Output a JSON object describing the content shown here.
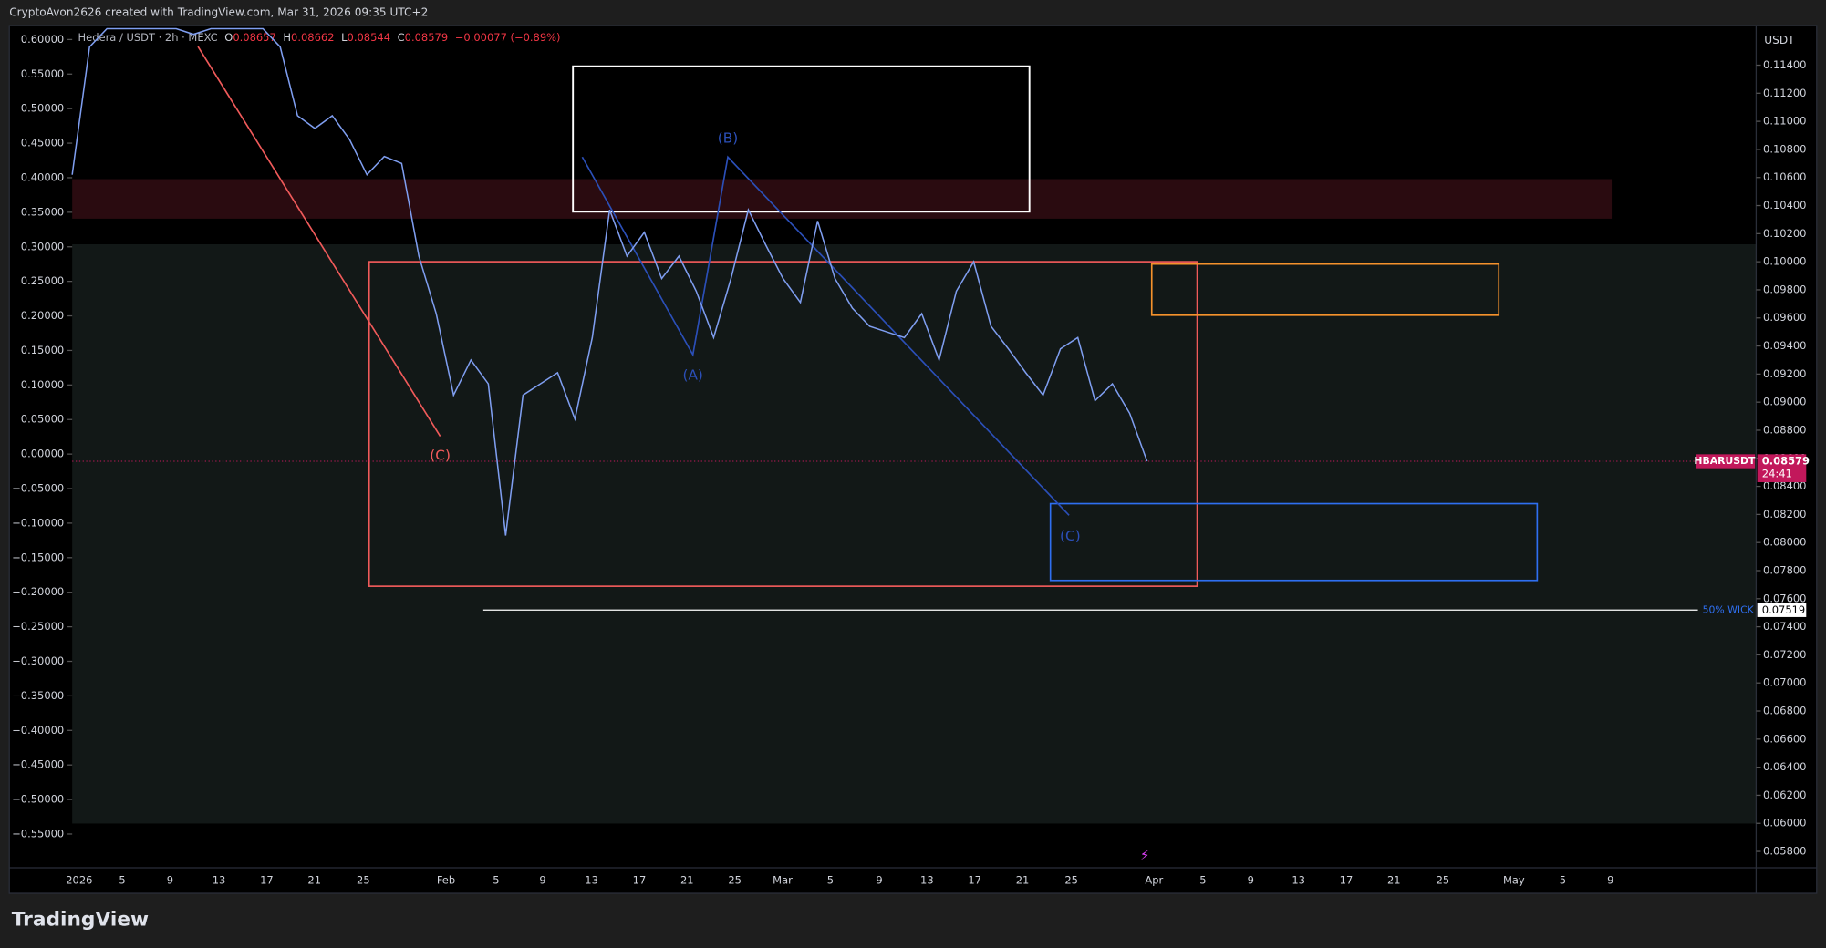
{
  "header": "CryptoAvon2626 created with TradingView.com, Mar 31, 2026 09:35 UTC+2",
  "chart_data": {
    "type": "line",
    "symbol": "Hedera / USDT · 2h · MEXC",
    "ohlc": [
      {
        "label": "O",
        "value": 0.08657
      },
      {
        "label": "H",
        "value": 0.08662
      },
      {
        "label": "L",
        "value": 0.08544
      },
      {
        "label": "C",
        "value": 0.08579
      }
    ],
    "change": "−0.00077 (−0.89%)",
    "currency": "USDT",
    "price": {
      "name": "HBARUSDT",
      "color": "#7f9ef0",
      "values": [
        0.1062,
        0.1153,
        0.1166,
        0.1166,
        0.1166,
        0.1166,
        0.1166,
        0.1162,
        0.1166,
        0.1166,
        0.1166,
        0.1166,
        0.1153,
        0.1104,
        0.1095,
        0.1104,
        0.1087,
        0.1062,
        0.1075,
        0.107,
        0.1004,
        0.0963,
        0.0905,
        0.093,
        0.0913,
        0.0805,
        0.0905,
        0.0913,
        0.0921,
        0.0888,
        0.0946,
        0.1037,
        0.1004,
        0.1021,
        0.0988,
        0.1004,
        0.0979,
        0.0946,
        0.0988,
        0.1037,
        0.1012,
        0.0988,
        0.0971,
        0.1029,
        0.0988,
        0.0967,
        0.0954,
        0.095,
        0.0946,
        0.0963,
        0.093,
        0.0979,
        0.1,
        0.0954,
        0.0938,
        0.0921,
        0.0905,
        0.0938,
        0.0946,
        0.0901,
        0.0913,
        0.0892,
        0.08579
      ]
    },
    "last_price": {
      "value": 0.08579,
      "label": "0.08579"
    },
    "countdown": "24:41",
    "wick_level": {
      "value": 0.07519,
      "label": "0.07519"
    },
    "wick_label": "50% WICK",
    "ylim": [
      0.05692,
      0.11682
    ],
    "yticks": [
      {
        "value": 0.114,
        "label": "0.11400"
      },
      {
        "value": 0.112,
        "label": "0.11200"
      },
      {
        "value": 0.11,
        "label": "0.11000"
      },
      {
        "value": 0.108,
        "label": "0.10800"
      },
      {
        "value": 0.106,
        "label": "0.10600"
      },
      {
        "value": 0.104,
        "label": "0.10400"
      },
      {
        "value": 0.102,
        "label": "0.10200"
      },
      {
        "value": 0.1,
        "label": "0.10000"
      },
      {
        "value": 0.098,
        "label": "0.09800"
      },
      {
        "value": 0.096,
        "label": "0.09600"
      },
      {
        "value": 0.094,
        "label": "0.09400"
      },
      {
        "value": 0.092,
        "label": "0.09200"
      },
      {
        "value": 0.09,
        "label": "0.09000"
      },
      {
        "value": 0.088,
        "label": "0.08800"
      },
      {
        "value": 0.086,
        "label": "0.08600"
      },
      {
        "value": 0.084,
        "label": "0.08400"
      },
      {
        "value": 0.082,
        "label": "0.08200"
      },
      {
        "value": 0.08,
        "label": "0.08000"
      },
      {
        "value": 0.078,
        "label": "0.07800"
      },
      {
        "value": 0.076,
        "label": "0.07600"
      },
      {
        "value": 0.074,
        "label": "0.07400"
      },
      {
        "value": 0.072,
        "label": "0.07200"
      },
      {
        "value": 0.07,
        "label": "0.07000"
      },
      {
        "value": 0.068,
        "label": "0.06800"
      },
      {
        "value": 0.066,
        "label": "0.06600"
      },
      {
        "value": 0.064,
        "label": "0.06400"
      },
      {
        "value": 0.062,
        "label": "0.06200"
      },
      {
        "value": 0.06,
        "label": "0.06000"
      },
      {
        "value": 0.058,
        "label": "0.05800"
      }
    ],
    "y2lim": [
      -0.5971,
      0.6202
    ],
    "y2ticks": [
      {
        "value": 0.6,
        "label": "0.60000"
      },
      {
        "value": 0.55,
        "label": "0.55000"
      },
      {
        "value": 0.5,
        "label": "0.50000"
      },
      {
        "value": 0.45,
        "label": "0.45000"
      },
      {
        "value": 0.4,
        "label": "0.40000"
      },
      {
        "value": 0.35,
        "label": "0.35000"
      },
      {
        "value": 0.3,
        "label": "0.30000"
      },
      {
        "value": 0.25,
        "label": "0.25000"
      },
      {
        "value": 0.2,
        "label": "0.20000"
      },
      {
        "value": 0.15,
        "label": "0.15000"
      },
      {
        "value": 0.1,
        "label": "0.10000"
      },
      {
        "value": 0.05,
        "label": "0.05000"
      },
      {
        "value": 0,
        "label": "0.00000"
      },
      {
        "value": -0.05,
        "label": "−0.05000"
      },
      {
        "value": -0.1,
        "label": "−0.10000"
      },
      {
        "value": -0.15,
        "label": "−0.15000"
      },
      {
        "value": -0.2,
        "label": "−0.20000"
      },
      {
        "value": -0.25,
        "label": "−0.25000"
      },
      {
        "value": -0.3,
        "label": "−0.30000"
      },
      {
        "value": -0.35,
        "label": "−0.35000"
      },
      {
        "value": -0.4,
        "label": "−0.40000"
      },
      {
        "value": -0.45,
        "label": "−0.45000"
      },
      {
        "value": -0.5,
        "label": "−0.50000"
      },
      {
        "value": -0.55,
        "label": "−0.55000"
      }
    ],
    "categories": [
      "2026",
      "5",
      "9",
      "13",
      "17",
      "21",
      "25",
      "Feb",
      "5",
      "9",
      "13",
      "17",
      "21",
      "25",
      "Mar",
      "5",
      "9",
      "13",
      "17",
      "21",
      "25",
      "Apr",
      "5",
      "9",
      "13",
      "17",
      "21",
      "25",
      "May",
      "5",
      "9"
    ],
    "annotations": [
      "(C)",
      "(A)",
      "(B)",
      "(C)"
    ]
  },
  "footer": "TradingView"
}
